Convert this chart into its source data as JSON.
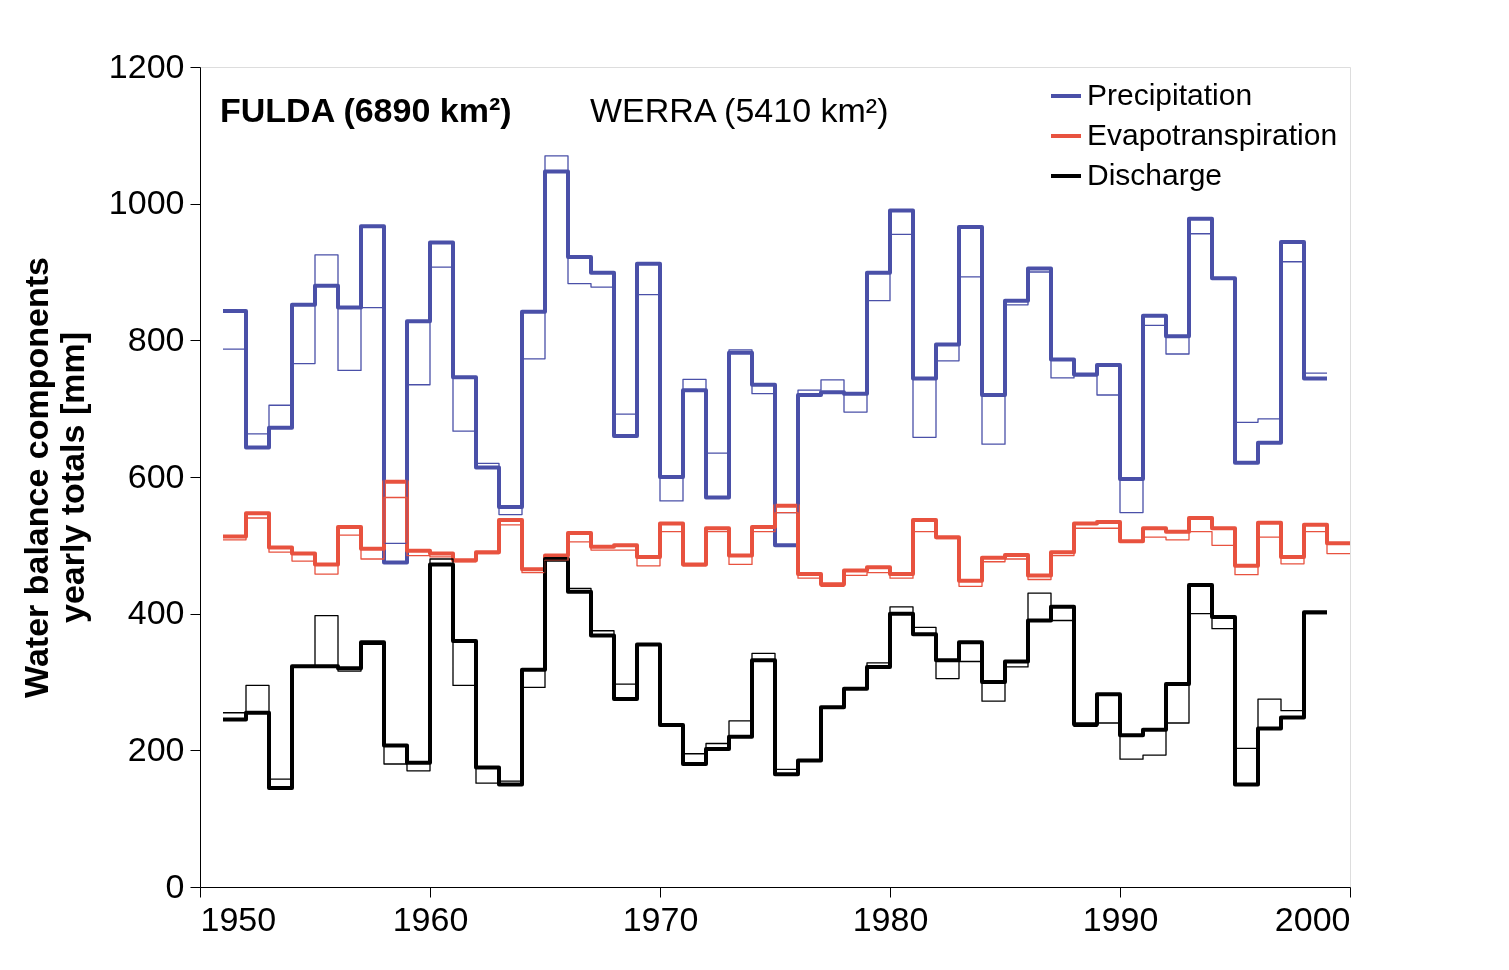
{
  "chart_data": {
    "type": "step",
    "ylabel": "Water balance components\nyearly totals [mm]",
    "annotations": [
      "FULDA (6890 km²)",
      "WERRA (5410 km²)"
    ],
    "xlim": [
      1950,
      2000
    ],
    "xticks": [
      1950,
      1960,
      1970,
      1980,
      1990,
      2000
    ],
    "ylim": [
      0,
      1200
    ],
    "yticks": [
      0,
      200,
      400,
      600,
      800,
      1000,
      1200
    ],
    "grid": false,
    "legend": "top right",
    "line_style": "solid",
    "marker": "none",
    "series": [
      {
        "name": "Precipitation",
        "color": "#4a50a8",
        "x": [
          1951,
          1952,
          1953,
          1954,
          1955,
          1956,
          1957,
          1958,
          1959,
          1960,
          1961,
          1962,
          1963,
          1964,
          1965,
          1966,
          1967,
          1968,
          1969,
          1970,
          1971,
          1972,
          1973,
          1974,
          1975,
          1976,
          1977,
          1978,
          1979,
          1980,
          1981,
          1982,
          1983,
          1984,
          1985,
          1986,
          1987,
          1988,
          1989,
          1990,
          1991,
          1992,
          1993,
          1994,
          1995,
          1996,
          1997,
          1998,
          1999
        ],
        "values": [
          843,
          643,
          672,
          852,
          880,
          848,
          967,
          475,
          828,
          943,
          746,
          614,
          556,
          842,
          1047,
          922,
          899,
          660,
          912,
          600,
          727,
          570,
          782,
          735,
          500,
          720,
          724,
          722,
          899,
          990,
          744,
          794,
          966,
          720,
          858,
          905,
          772,
          750,
          764,
          597,
          836,
          806,
          978,
          891,
          621,
          650,
          944,
          744,
          744
        ]
      },
      {
        "name": "Evapotranspiration",
        "color": "#e8523f",
        "x": [
          1951,
          1952,
          1953,
          1954,
          1955,
          1956,
          1957,
          1958,
          1959,
          1960,
          1961,
          1962,
          1963,
          1964,
          1965,
          1966,
          1967,
          1968,
          1969,
          1970,
          1971,
          1972,
          1973,
          1974,
          1975,
          1976,
          1977,
          1978,
          1979,
          1980,
          1981,
          1982,
          1983,
          1984,
          1985,
          1986,
          1987,
          1988,
          1989,
          1990,
          1991,
          1992,
          1993,
          1994,
          1995,
          1996,
          1997,
          1998,
          1999,
          2000
        ],
        "values": [
          513,
          547,
          497,
          488,
          472,
          527,
          495,
          593,
          492,
          488,
          478,
          490,
          537,
          465,
          485,
          518,
          498,
          500,
          483,
          532,
          472,
          525,
          485,
          527,
          558,
          458,
          443,
          463,
          468,
          458,
          537,
          512,
          448,
          482,
          486,
          456,
          490,
          532,
          534,
          506,
          525,
          520,
          540,
          525,
          470,
          533,
          483,
          530,
          503,
          503
        ]
      },
      {
        "name": "Discharge",
        "color": "#000000",
        "x": [
          1951,
          1952,
          1953,
          1954,
          1955,
          1956,
          1957,
          1958,
          1959,
          1960,
          1961,
          1962,
          1963,
          1964,
          1965,
          1966,
          1967,
          1968,
          1969,
          1970,
          1971,
          1972,
          1973,
          1974,
          1975,
          1976,
          1977,
          1978,
          1979,
          1980,
          1981,
          1982,
          1983,
          1984,
          1985,
          1986,
          1987,
          1988,
          1989,
          1990,
          1991,
          1992,
          1993,
          1994,
          1995,
          1996,
          1997,
          1998,
          1999
        ],
        "values": [
          245,
          255,
          145,
          323,
          323,
          320,
          358,
          207,
          182,
          472,
          360,
          175,
          150,
          318,
          480,
          432,
          368,
          275,
          355,
          237,
          180,
          202,
          220,
          332,
          165,
          185,
          263,
          290,
          322,
          400,
          370,
          332,
          358,
          300,
          330,
          390,
          410,
          238,
          282,
          222,
          230,
          297,
          442,
          395,
          150,
          232,
          248,
          402,
          402
        ]
      },
      {
        "color": "#4a50a8",
        "x": [
          1951,
          1952,
          1953,
          1954,
          1955,
          1956,
          1957,
          1958,
          1959,
          1960,
          1961,
          1962,
          1963,
          1964,
          1965,
          1966,
          1967,
          1968,
          1969,
          1970,
          1971,
          1972,
          1973,
          1974,
          1975,
          1976,
          1977,
          1978,
          1979,
          1980,
          1981,
          1982,
          1983,
          1984,
          1985,
          1986,
          1987,
          1988,
          1989,
          1990,
          1991,
          1992,
          1993,
          1994,
          1995,
          1996,
          1997,
          1998,
          1999
        ],
        "values": [
          787,
          663,
          705,
          766,
          925,
          756,
          848,
          503,
          735,
          907,
          667,
          620,
          545,
          773,
          1070,
          883,
          878,
          692,
          867,
          565,
          743,
          635,
          786,
          722,
          548,
          727,
          742,
          695,
          858,
          955,
          658,
          770,
          893,
          648,
          852,
          900,
          745,
          748,
          720,
          548,
          822,
          780,
          956,
          891,
          680,
          685,
          915,
          752,
          752
        ]
      },
      {
        "color": "#e8523f",
        "x": [
          1951,
          1952,
          1953,
          1954,
          1955,
          1956,
          1957,
          1958,
          1959,
          1960,
          1961,
          1962,
          1963,
          1964,
          1965,
          1966,
          1967,
          1968,
          1969,
          1970,
          1971,
          1972,
          1973,
          1974,
          1975,
          1976,
          1977,
          1978,
          1979,
          1980,
          1981,
          1982,
          1983,
          1984,
          1985,
          1986,
          1987,
          1988,
          1989,
          1990,
          1991,
          1992,
          1993,
          1994,
          1995,
          1996,
          1997,
          1998,
          1999,
          2000
        ],
        "values": [
          508,
          540,
          490,
          477,
          458,
          515,
          480,
          570,
          485,
          483,
          476,
          488,
          530,
          460,
          478,
          505,
          493,
          493,
          470,
          520,
          470,
          520,
          472,
          520,
          548,
          452,
          440,
          456,
          460,
          452,
          520,
          510,
          440,
          476,
          480,
          450,
          485,
          525,
          525,
          505,
          512,
          508,
          520,
          500,
          457,
          512,
          473,
          520,
          488,
          488
        ]
      },
      {
        "color": "#000000",
        "x": [
          1951,
          1952,
          1953,
          1954,
          1955,
          1956,
          1957,
          1958,
          1959,
          1960,
          1961,
          1962,
          1963,
          1964,
          1965,
          1966,
          1967,
          1968,
          1969,
          1970,
          1971,
          1972,
          1973,
          1974,
          1975,
          1976,
          1977,
          1978,
          1979,
          1980,
          1981,
          1982,
          1983,
          1984,
          1985,
          1986,
          1987,
          1988,
          1989,
          1990,
          1991,
          1992,
          1993,
          1994,
          1995,
          1996,
          1997,
          1998,
          1999
        ],
        "values": [
          255,
          295,
          158,
          323,
          397,
          316,
          355,
          180,
          170,
          480,
          295,
          152,
          155,
          292,
          477,
          437,
          375,
          297,
          355,
          237,
          195,
          210,
          243,
          342,
          172,
          185,
          263,
          290,
          328,
          410,
          380,
          305,
          330,
          272,
          322,
          430,
          390,
          235,
          240,
          187,
          193,
          240,
          400,
          378,
          203,
          275,
          258,
          400,
          400
        ]
      }
    ]
  }
}
